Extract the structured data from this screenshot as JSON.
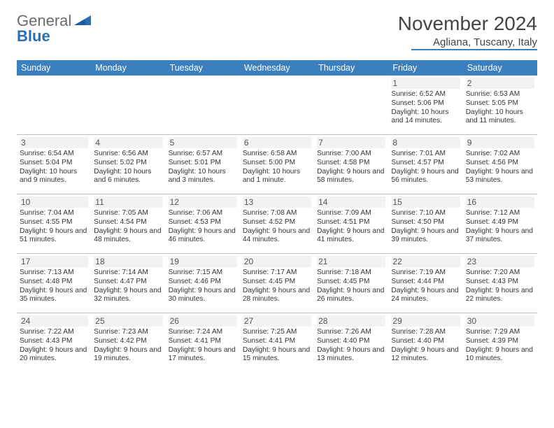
{
  "logo": {
    "textTop": "General",
    "textBottom": "Blue"
  },
  "header": {
    "month": "November 2024",
    "location": "Agliana, Tuscany, Italy"
  },
  "colors": {
    "headerBar": "#3b7fbf",
    "dayBg": "#f2f2f2",
    "border": "#bfbfbf",
    "text": "#333333",
    "logoGray": "#6b6b6b",
    "logoBlue": "#2a6fb5"
  },
  "dayNames": [
    "Sunday",
    "Monday",
    "Tuesday",
    "Wednesday",
    "Thursday",
    "Friday",
    "Saturday"
  ],
  "weeks": [
    [
      {
        "empty": true
      },
      {
        "empty": true
      },
      {
        "empty": true
      },
      {
        "empty": true
      },
      {
        "empty": true
      },
      {
        "n": "1",
        "sunrise": "Sunrise: 6:52 AM",
        "sunset": "Sunset: 5:06 PM",
        "daylight": "Daylight: 10 hours and 14 minutes."
      },
      {
        "n": "2",
        "sunrise": "Sunrise: 6:53 AM",
        "sunset": "Sunset: 5:05 PM",
        "daylight": "Daylight: 10 hours and 11 minutes."
      }
    ],
    [
      {
        "n": "3",
        "sunrise": "Sunrise: 6:54 AM",
        "sunset": "Sunset: 5:04 PM",
        "daylight": "Daylight: 10 hours and 9 minutes."
      },
      {
        "n": "4",
        "sunrise": "Sunrise: 6:56 AM",
        "sunset": "Sunset: 5:02 PM",
        "daylight": "Daylight: 10 hours and 6 minutes."
      },
      {
        "n": "5",
        "sunrise": "Sunrise: 6:57 AM",
        "sunset": "Sunset: 5:01 PM",
        "daylight": "Daylight: 10 hours and 3 minutes."
      },
      {
        "n": "6",
        "sunrise": "Sunrise: 6:58 AM",
        "sunset": "Sunset: 5:00 PM",
        "daylight": "Daylight: 10 hours and 1 minute."
      },
      {
        "n": "7",
        "sunrise": "Sunrise: 7:00 AM",
        "sunset": "Sunset: 4:58 PM",
        "daylight": "Daylight: 9 hours and 58 minutes."
      },
      {
        "n": "8",
        "sunrise": "Sunrise: 7:01 AM",
        "sunset": "Sunset: 4:57 PM",
        "daylight": "Daylight: 9 hours and 56 minutes."
      },
      {
        "n": "9",
        "sunrise": "Sunrise: 7:02 AM",
        "sunset": "Sunset: 4:56 PM",
        "daylight": "Daylight: 9 hours and 53 minutes."
      }
    ],
    [
      {
        "n": "10",
        "sunrise": "Sunrise: 7:04 AM",
        "sunset": "Sunset: 4:55 PM",
        "daylight": "Daylight: 9 hours and 51 minutes."
      },
      {
        "n": "11",
        "sunrise": "Sunrise: 7:05 AM",
        "sunset": "Sunset: 4:54 PM",
        "daylight": "Daylight: 9 hours and 48 minutes."
      },
      {
        "n": "12",
        "sunrise": "Sunrise: 7:06 AM",
        "sunset": "Sunset: 4:53 PM",
        "daylight": "Daylight: 9 hours and 46 minutes."
      },
      {
        "n": "13",
        "sunrise": "Sunrise: 7:08 AM",
        "sunset": "Sunset: 4:52 PM",
        "daylight": "Daylight: 9 hours and 44 minutes."
      },
      {
        "n": "14",
        "sunrise": "Sunrise: 7:09 AM",
        "sunset": "Sunset: 4:51 PM",
        "daylight": "Daylight: 9 hours and 41 minutes."
      },
      {
        "n": "15",
        "sunrise": "Sunrise: 7:10 AM",
        "sunset": "Sunset: 4:50 PM",
        "daylight": "Daylight: 9 hours and 39 minutes."
      },
      {
        "n": "16",
        "sunrise": "Sunrise: 7:12 AM",
        "sunset": "Sunset: 4:49 PM",
        "daylight": "Daylight: 9 hours and 37 minutes."
      }
    ],
    [
      {
        "n": "17",
        "sunrise": "Sunrise: 7:13 AM",
        "sunset": "Sunset: 4:48 PM",
        "daylight": "Daylight: 9 hours and 35 minutes."
      },
      {
        "n": "18",
        "sunrise": "Sunrise: 7:14 AM",
        "sunset": "Sunset: 4:47 PM",
        "daylight": "Daylight: 9 hours and 32 minutes."
      },
      {
        "n": "19",
        "sunrise": "Sunrise: 7:15 AM",
        "sunset": "Sunset: 4:46 PM",
        "daylight": "Daylight: 9 hours and 30 minutes."
      },
      {
        "n": "20",
        "sunrise": "Sunrise: 7:17 AM",
        "sunset": "Sunset: 4:45 PM",
        "daylight": "Daylight: 9 hours and 28 minutes."
      },
      {
        "n": "21",
        "sunrise": "Sunrise: 7:18 AM",
        "sunset": "Sunset: 4:45 PM",
        "daylight": "Daylight: 9 hours and 26 minutes."
      },
      {
        "n": "22",
        "sunrise": "Sunrise: 7:19 AM",
        "sunset": "Sunset: 4:44 PM",
        "daylight": "Daylight: 9 hours and 24 minutes."
      },
      {
        "n": "23",
        "sunrise": "Sunrise: 7:20 AM",
        "sunset": "Sunset: 4:43 PM",
        "daylight": "Daylight: 9 hours and 22 minutes."
      }
    ],
    [
      {
        "n": "24",
        "sunrise": "Sunrise: 7:22 AM",
        "sunset": "Sunset: 4:43 PM",
        "daylight": "Daylight: 9 hours and 20 minutes."
      },
      {
        "n": "25",
        "sunrise": "Sunrise: 7:23 AM",
        "sunset": "Sunset: 4:42 PM",
        "daylight": "Daylight: 9 hours and 19 minutes."
      },
      {
        "n": "26",
        "sunrise": "Sunrise: 7:24 AM",
        "sunset": "Sunset: 4:41 PM",
        "daylight": "Daylight: 9 hours and 17 minutes."
      },
      {
        "n": "27",
        "sunrise": "Sunrise: 7:25 AM",
        "sunset": "Sunset: 4:41 PM",
        "daylight": "Daylight: 9 hours and 15 minutes."
      },
      {
        "n": "28",
        "sunrise": "Sunrise: 7:26 AM",
        "sunset": "Sunset: 4:40 PM",
        "daylight": "Daylight: 9 hours and 13 minutes."
      },
      {
        "n": "29",
        "sunrise": "Sunrise: 7:28 AM",
        "sunset": "Sunset: 4:40 PM",
        "daylight": "Daylight: 9 hours and 12 minutes."
      },
      {
        "n": "30",
        "sunrise": "Sunrise: 7:29 AM",
        "sunset": "Sunset: 4:39 PM",
        "daylight": "Daylight: 9 hours and 10 minutes."
      }
    ]
  ]
}
